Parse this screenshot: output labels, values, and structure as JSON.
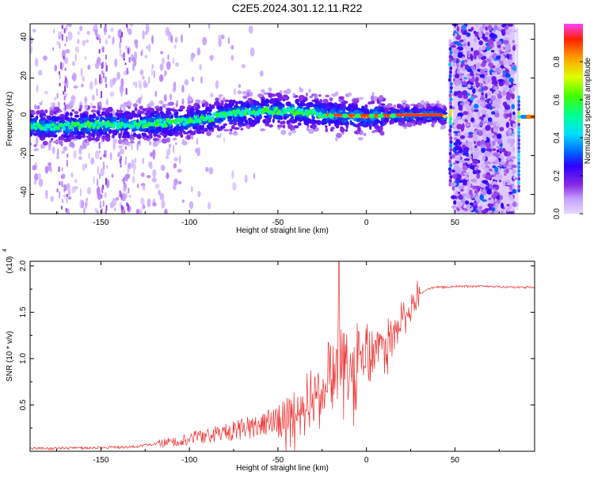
{
  "title": "C2E5.2024.301.12.11.R22",
  "chart_data": [
    {
      "type": "heatmap",
      "title": "C2E5.2024.301.12.11.R22",
      "xlabel": "Height of straight line (km)",
      "ylabel": "Frequency (Hz)",
      "xlim": [
        -190,
        95
      ],
      "ylim": [
        -50,
        48
      ],
      "x_ticks": [
        -150,
        -100,
        -50,
        0,
        50
      ],
      "y_ticks": [
        -40,
        -20,
        0,
        20,
        40
      ],
      "colorbar": {
        "label": "Normalized spectral amplitude",
        "range": [
          0.0,
          1.0
        ],
        "ticks": [
          0.0,
          0.2,
          0.4,
          0.6,
          0.8
        ],
        "tick_labels": [
          "0.0",
          "0.2",
          "0.4",
          "0.6",
          "0.8"
        ]
      },
      "ridge": [
        {
          "x": -188,
          "y": -5,
          "amp": 0.45
        },
        {
          "x": -170,
          "y": -5,
          "amp": 0.5
        },
        {
          "x": -150,
          "y": -4,
          "amp": 0.5
        },
        {
          "x": -130,
          "y": -4,
          "amp": 0.5
        },
        {
          "x": -110,
          "y": -3,
          "amp": 0.5
        },
        {
          "x": -90,
          "y": -1,
          "amp": 0.5
        },
        {
          "x": -75,
          "y": 2,
          "amp": 0.55
        },
        {
          "x": -60,
          "y": 3,
          "amp": 0.5
        },
        {
          "x": -45,
          "y": 3,
          "amp": 0.5
        },
        {
          "x": -30,
          "y": 2,
          "amp": 0.55
        },
        {
          "x": -22,
          "y": 1,
          "amp": 0.9
        },
        {
          "x": 0,
          "y": 0,
          "amp": 0.9
        },
        {
          "x": 20,
          "y": 1,
          "amp": 0.95
        },
        {
          "x": 42,
          "y": 1,
          "amp": 0.95
        },
        {
          "x": 45,
          "y": 0,
          "amp": 0.5
        },
        {
          "x": 83,
          "y": 0,
          "amp": 0.5
        },
        {
          "x": 95,
          "y": 0,
          "amp": 0.9
        }
      ]
    },
    {
      "type": "line",
      "xlabel": "Height of straight line (km)",
      "ylabel": "SNR (10 * v/v)",
      "y_multiplier": "(x10",
      "y_multiplier_exp": "4",
      "xlim": [
        -190,
        95
      ],
      "ylim": [
        0.0,
        2.05
      ],
      "x_ticks": [
        -150,
        -100,
        -50,
        0,
        50
      ],
      "y_ticks": [
        0.5,
        1.0,
        1.5,
        2.0
      ],
      "y_tick_labels": [
        "0.5",
        "1.0",
        "1.5",
        "2.0"
      ],
      "color": "#ee3030",
      "x": [
        -190,
        -170,
        -150,
        -130,
        -110,
        -90,
        -75,
        -60,
        -50,
        -40,
        -35,
        -30,
        -25,
        -20,
        -17,
        -15,
        -10,
        -5,
        0,
        5,
        10,
        15,
        20,
        25,
        30,
        35,
        40,
        45,
        50,
        60,
        70,
        80,
        95
      ],
      "y": [
        0.03,
        0.03,
        0.04,
        0.05,
        0.1,
        0.17,
        0.22,
        0.28,
        0.35,
        0.45,
        0.55,
        0.6,
        0.75,
        0.9,
        1.1,
        0.95,
        1.0,
        1.1,
        1.15,
        1.15,
        1.2,
        1.3,
        1.45,
        1.6,
        1.7,
        1.75,
        1.77,
        1.77,
        1.78,
        1.78,
        1.78,
        1.77,
        1.77
      ]
    }
  ]
}
